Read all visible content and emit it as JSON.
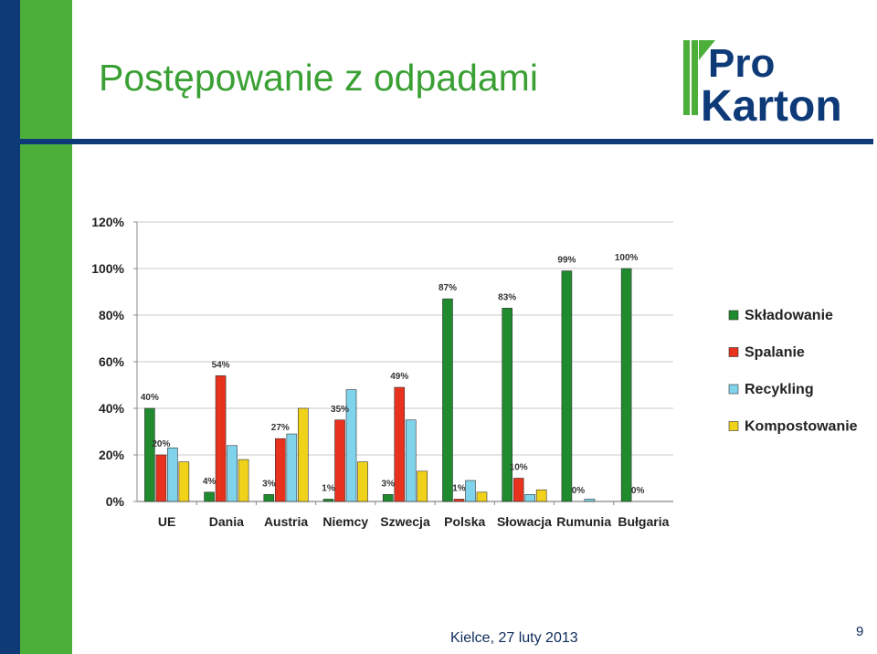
{
  "slide": {
    "title": "Postępowanie z odpadami",
    "footer": "Kielce, 27 luty 2013",
    "page_number": "9",
    "logo": {
      "line1": "Pro",
      "line2": "Karton"
    },
    "colors": {
      "blue": "#0e3a78",
      "green": "#4caf3a"
    }
  },
  "chart_data": {
    "type": "bar",
    "categories": [
      "UE",
      "Dania",
      "Austria",
      "Niemcy",
      "Szwecja",
      "Polska",
      "Słowacja",
      "Rumunia",
      "Bułgaria"
    ],
    "series": [
      {
        "name": "Składowanie",
        "color": "#1f8a2e",
        "values": [
          40,
          4,
          3,
          1,
          3,
          87,
          83,
          99,
          100
        ]
      },
      {
        "name": "Spalanie",
        "color": "#e8321e",
        "values": [
          20,
          54,
          27,
          35,
          49,
          1,
          10,
          0,
          0
        ]
      },
      {
        "name": "Recykling",
        "color": "#7fd3ea",
        "values": [
          23,
          24,
          29,
          48,
          35,
          9,
          3,
          1,
          0
        ]
      },
      {
        "name": "Kompostowanie",
        "color": "#f0d21a",
        "values": [
          17,
          18,
          40,
          17,
          13,
          4,
          5,
          0,
          0
        ]
      }
    ],
    "data_labels": [
      {
        "category": "UE",
        "series": "Składowanie",
        "text": "40%"
      },
      {
        "category": "UE",
        "series": "Spalanie",
        "text": "20%"
      },
      {
        "category": "Dania",
        "series": "Składowanie",
        "text": "4%"
      },
      {
        "category": "Dania",
        "series": "Spalanie",
        "text": "54%"
      },
      {
        "category": "Austria",
        "series": "Składowanie",
        "text": "3%"
      },
      {
        "category": "Austria",
        "series": "Spalanie",
        "text": "27%"
      },
      {
        "category": "Niemcy",
        "series": "Składowanie",
        "text": "1%"
      },
      {
        "category": "Niemcy",
        "series": "Spalanie",
        "text": "35%"
      },
      {
        "category": "Szwecja",
        "series": "Składowanie",
        "text": "3%"
      },
      {
        "category": "Szwecja",
        "series": "Spalanie",
        "text": "49%"
      },
      {
        "category": "Polska",
        "series": "Składowanie",
        "text": "87%"
      },
      {
        "category": "Polska",
        "series": "Spalanie",
        "text": "1%"
      },
      {
        "category": "Słowacja",
        "series": "Składowanie",
        "text": "83%"
      },
      {
        "category": "Słowacja",
        "series": "Spalanie",
        "text": "10%"
      },
      {
        "category": "Rumunia",
        "series": "Składowanie",
        "text": "99%"
      },
      {
        "category": "Rumunia",
        "series": "Spalanie",
        "text": "0%"
      },
      {
        "category": "Bułgaria",
        "series": "Składowanie",
        "text": "100%"
      },
      {
        "category": "Bułgaria",
        "series": "Spalanie",
        "text": "0%"
      }
    ],
    "yticks": [
      "0%",
      "20%",
      "40%",
      "60%",
      "80%",
      "100%",
      "120%"
    ],
    "ylim": [
      0,
      120
    ],
    "grid": true,
    "legend": "right",
    "title": "",
    "xlabel": "",
    "ylabel": ""
  }
}
